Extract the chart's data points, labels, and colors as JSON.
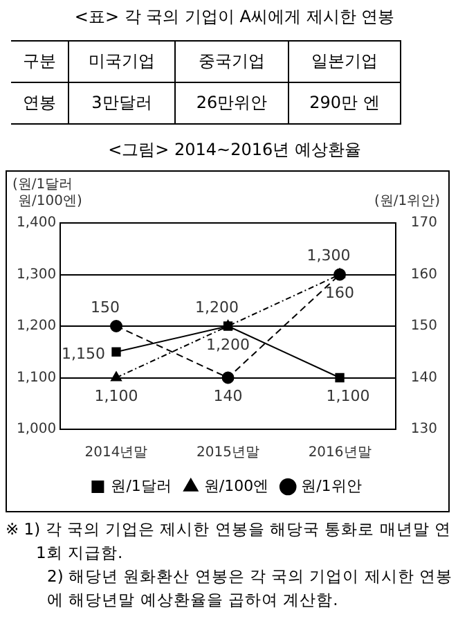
{
  "chart_data": [
    {
      "type": "other",
      "title": "<표> 각 국의 기업이 A씨에게 제시한 연봉",
      "categories": [
        "구분",
        "미국기업",
        "중국기업",
        "일본기업"
      ],
      "annotations": [
        "연봉",
        "3만달러",
        "26만위안",
        "290만 엔"
      ]
    },
    {
      "type": "line",
      "title": "<그림> 2014~2016년 예상환율",
      "ylabel": "(원/1달러\n원/100엔)",
      "y2label": "(원/1위안)",
      "categories": [
        "2014년말",
        "2015년말",
        "2016년말"
      ],
      "series": [
        {
          "name": "원/1달러",
          "color": "#000000",
          "values": [
            1150,
            1200,
            1100
          ],
          "value_labels": [
            "1,150",
            "1,200",
            "1,100"
          ],
          "marker": "square",
          "line_style": "solid"
        },
        {
          "name": "원/100엔",
          "color": "#000000",
          "values": [
            1100,
            1200,
            1300
          ],
          "value_labels": [
            "1,100",
            "1,200",
            "1,300"
          ],
          "marker": "triangle",
          "line_style": "dotted"
        },
        {
          "name": "원/1위안",
          "color": "#000000",
          "values": [
            150,
            140,
            160
          ],
          "value_labels": [
            "150",
            "140",
            "160"
          ],
          "marker": "circle",
          "line_style": "dashed",
          "axis": "y2"
        }
      ],
      "ylim": [
        1000,
        1400
      ],
      "yticks": [
        {
          "value": 1000,
          "label": "1,000"
        },
        {
          "value": 1100,
          "label": "1,100"
        },
        {
          "value": 1200,
          "label": "1,200"
        },
        {
          "value": 1300,
          "label": "1,300"
        },
        {
          "value": 1400,
          "label": "1,400"
        }
      ],
      "y2lim": [
        130,
        170
      ],
      "y2ticks": [
        130,
        140,
        150,
        160,
        170
      ],
      "grid": "y",
      "legend": "bottom",
      "annotations": [
        "※ 1) 각 국의 기업은 제시한 연봉을 해당국 통화로 매년말 연 1회 지급함.",
        "2) 해당년 원화환산 연봉은 각 국의 기업이 제시한 연봉에 해당년말 예상환율을 곱하여 계산함."
      ]
    }
  ]
}
